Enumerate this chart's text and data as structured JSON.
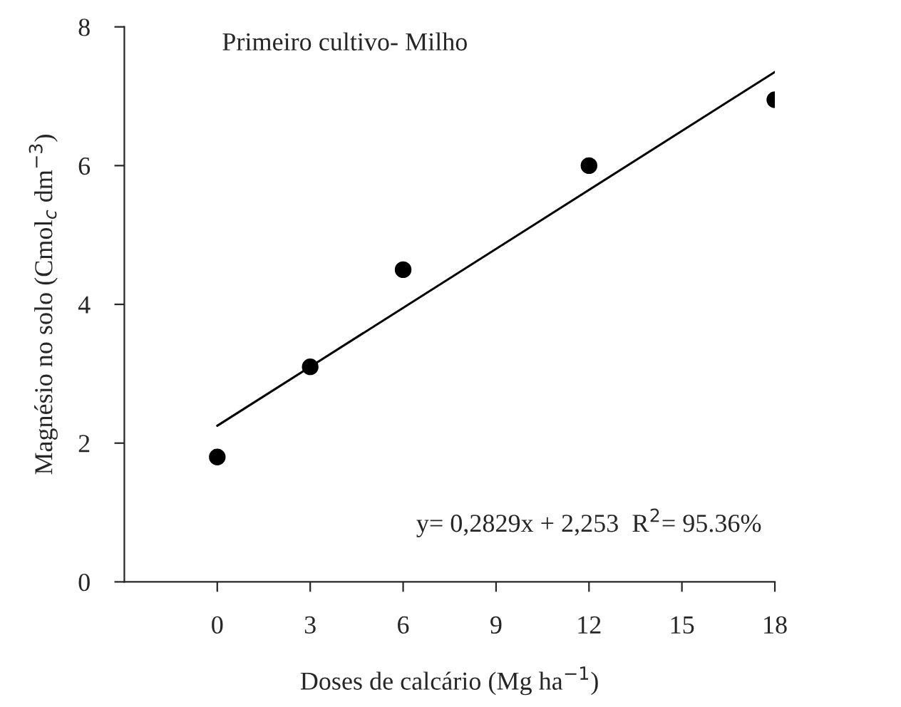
{
  "chart_data": {
    "type": "scatter",
    "title": "Primeiro cultivo- Milho",
    "xlabel": "Doses de calcário (Mg ha$^{−1}$)",
    "ylabel": "Magnésio no solo (Cmol$_{c}$ dm$^{−3}$)",
    "x": [
      0,
      3,
      6,
      12,
      18
    ],
    "series": [
      {
        "color": "#000000",
        "values": [
          1.8,
          3.1,
          4.5,
          6.0,
          6.95
        ],
        "marker": "circle"
      },
      {
        "type": "line",
        "color": "#000000",
        "x": [
          0,
          18
        ],
        "values": [
          2.25,
          7.35
        ],
        "marker": "none",
        "line_style": "solid"
      }
    ],
    "annotations": [
      "y= 0,2829x + 2,253  R$^{2}$= 95.36%"
    ],
    "xlim": [
      -3,
      18
    ],
    "xticks": [
      0,
      3,
      6,
      9,
      12,
      15,
      18
    ],
    "ylim": [
      0,
      8
    ],
    "yticks": [
      0,
      2,
      4,
      6,
      8
    ],
    "grid": false,
    "legend": false
  }
}
